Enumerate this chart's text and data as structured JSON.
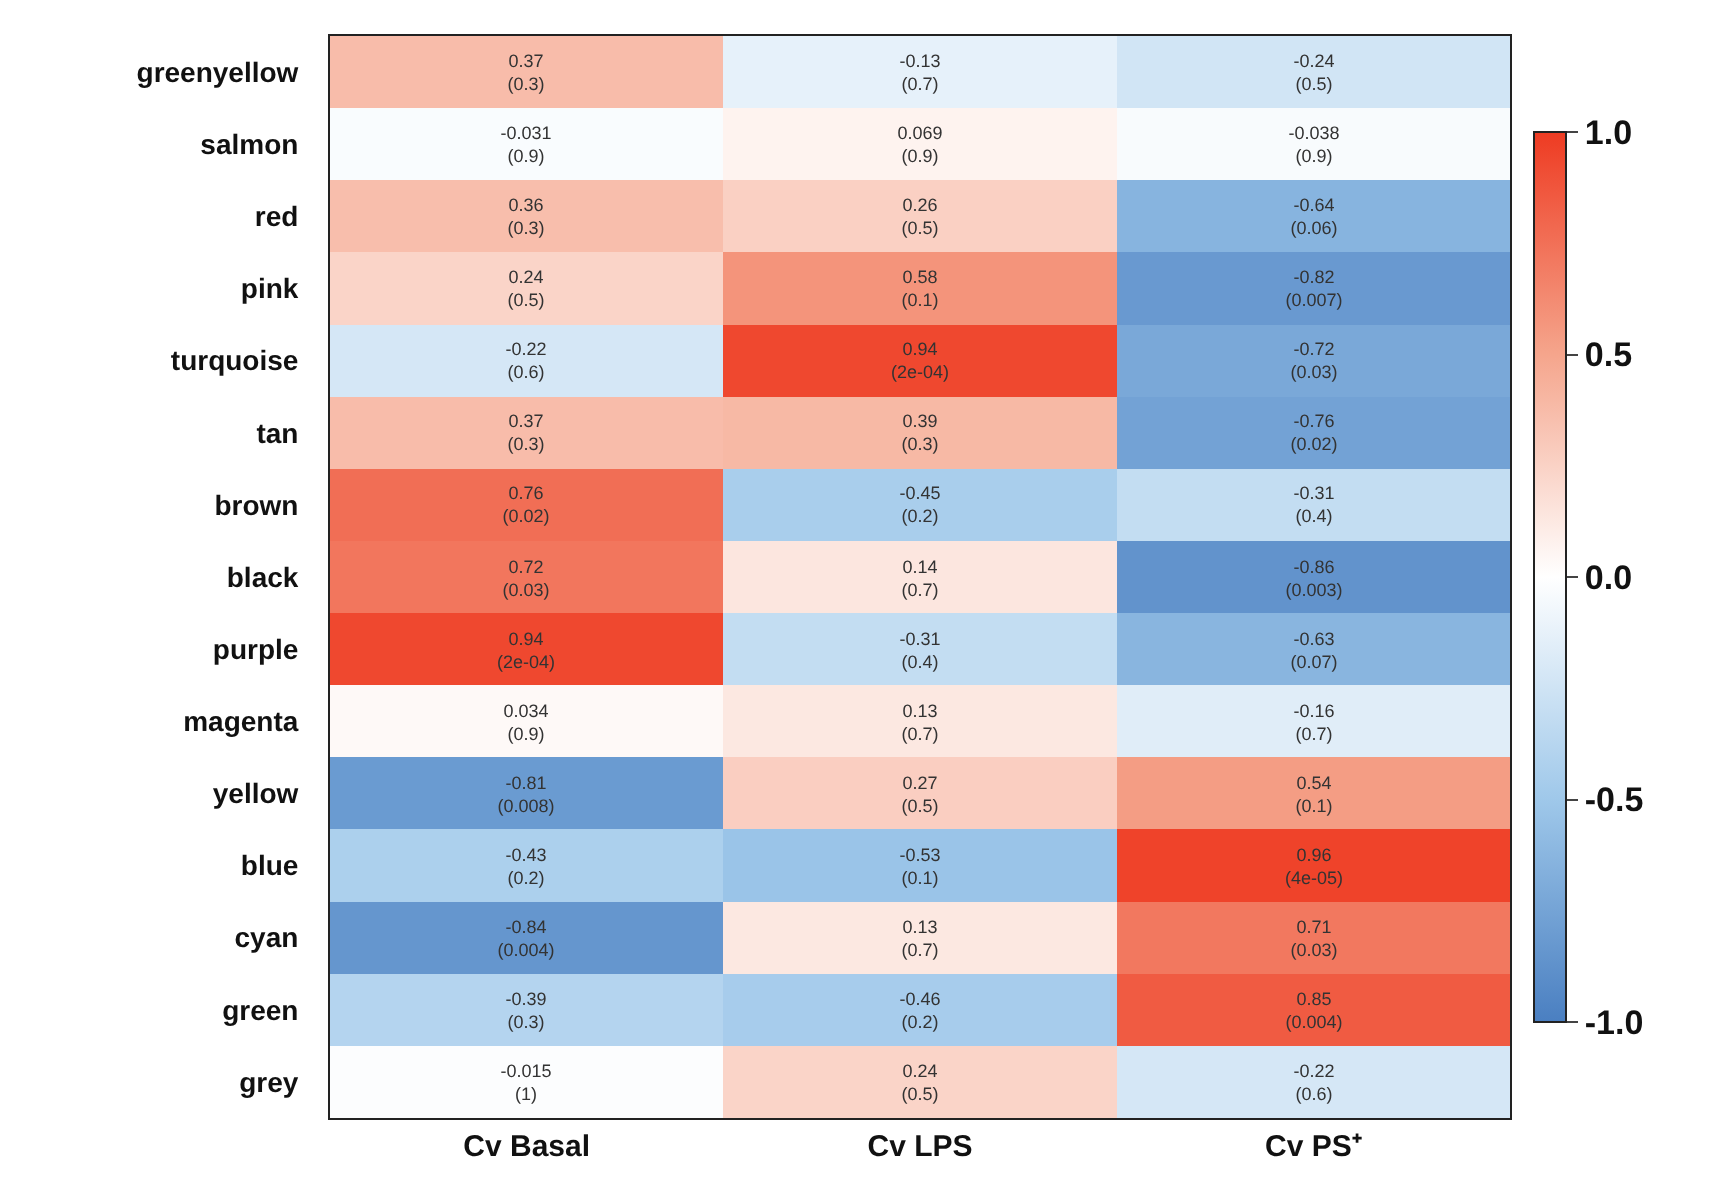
{
  "chart_data": {
    "type": "heatmap",
    "categories": [
      "Cv Basal",
      "Cv LPS",
      "Cv PS⁺"
    ],
    "y_categories": [
      "greenyellow",
      "salmon",
      "red",
      "pink",
      "turquoise",
      "tan",
      "brown",
      "black",
      "purple",
      "magenta",
      "yellow",
      "blue",
      "cyan",
      "green",
      "grey"
    ],
    "cells": [
      [
        0.37,
        -0.13,
        -0.24
      ],
      [
        -0.031,
        0.069,
        -0.038
      ],
      [
        0.36,
        0.26,
        -0.64
      ],
      [
        0.24,
        0.58,
        -0.82
      ],
      [
        -0.22,
        0.94,
        -0.72
      ],
      [
        0.37,
        0.39,
        -0.76
      ],
      [
        0.76,
        -0.45,
        -0.31
      ],
      [
        0.72,
        0.14,
        -0.86
      ],
      [
        0.94,
        -0.31,
        -0.63
      ],
      [
        0.034,
        0.13,
        -0.16
      ],
      [
        -0.81,
        0.27,
        0.54
      ],
      [
        -0.43,
        -0.53,
        0.96
      ],
      [
        -0.84,
        0.13,
        0.71
      ],
      [
        -0.39,
        -0.46,
        0.85
      ],
      [
        -0.015,
        0.24,
        -0.22
      ]
    ],
    "cell_labels": [
      [
        "0.37\n(0.3)",
        "-0.13\n(0.7)",
        "-0.24\n(0.5)"
      ],
      [
        "-0.031\n(0.9)",
        "0.069\n(0.9)",
        "-0.038\n(0.9)"
      ],
      [
        "0.36\n(0.3)",
        "0.26\n(0.5)",
        "-0.64\n(0.06)"
      ],
      [
        "0.24\n(0.5)",
        "0.58\n(0.1)",
        "-0.82\n(0.007)"
      ],
      [
        "-0.22\n(0.6)",
        "0.94\n(2e-04)",
        "-0.72\n(0.03)"
      ],
      [
        "0.37\n(0.3)",
        "0.39\n(0.3)",
        "-0.76\n(0.02)"
      ],
      [
        "0.76\n(0.02)",
        "-0.45\n(0.2)",
        "-0.31\n(0.4)"
      ],
      [
        "0.72\n(0.03)",
        "0.14\n(0.7)",
        "-0.86\n(0.003)"
      ],
      [
        "0.94\n(2e-04)",
        "-0.31\n(0.4)",
        "-0.63\n(0.07)"
      ],
      [
        "0.034\n(0.9)",
        "0.13\n(0.7)",
        "-0.16\n(0.7)"
      ],
      [
        "-0.81\n(0.008)",
        "0.27\n(0.5)",
        "0.54\n(0.1)"
      ],
      [
        "-0.43\n(0.2)",
        "-0.53\n(0.1)",
        "0.96\n(4e-05)"
      ],
      [
        "-0.84\n(0.004)",
        "0.13\n(0.7)",
        "0.71\n(0.03)"
      ],
      [
        "-0.39\n(0.3)",
        "-0.46\n(0.2)",
        "0.85\n(0.004)"
      ],
      [
        "-0.015\n(1)",
        "0.24\n(0.5)",
        "-0.22\n(0.6)"
      ]
    ],
    "clim": [
      -1.0,
      1.0
    ],
    "cticks": [
      {
        "value": 1.0,
        "label": "1.0"
      },
      {
        "value": 0.5,
        "label": "0.5"
      },
      {
        "value": 0.0,
        "label": "0.0"
      },
      {
        "value": -0.5,
        "label": "-0.5"
      },
      {
        "value": -1.0,
        "label": "-1.0"
      }
    ]
  }
}
